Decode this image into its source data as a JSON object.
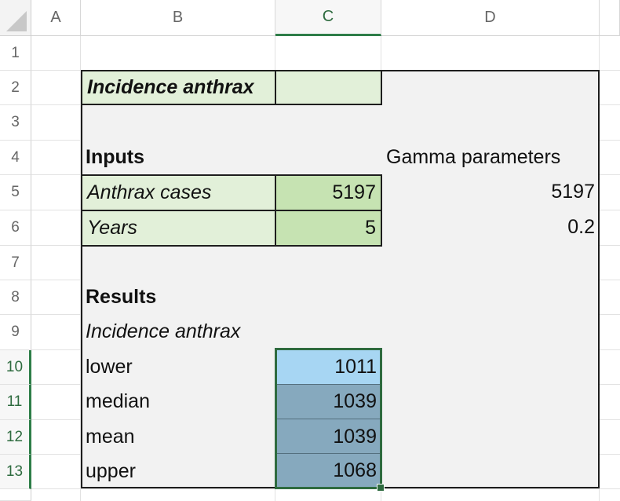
{
  "columns": [
    "A",
    "B",
    "C",
    "D"
  ],
  "rows": [
    "1",
    "2",
    "3",
    "4",
    "5",
    "6",
    "7",
    "8",
    "9",
    "10",
    "11",
    "12",
    "13"
  ],
  "selected_column": "C",
  "sheet": {
    "b2": "Incidence anthrax",
    "b4": "Inputs",
    "d4": "Gamma parameters",
    "b5": "Anthrax cases",
    "c5": "5197",
    "d5": "5197",
    "b6": "Years",
    "c6": "5",
    "d6": "0.2",
    "b8": "Results",
    "b9": "Incidence anthrax",
    "b10": "lower",
    "c10": "1011",
    "b11": "median",
    "c11": "1039",
    "b12": "mean",
    "c12": "1039",
    "b13": "upper",
    "c13": "1068"
  },
  "colors": {
    "input_label_fill": "#e2f0d9",
    "input_value_fill": "#c6e3b2",
    "active_cell_fill": "#a7d6f3",
    "selected_range_fill": "#86a9be",
    "selection_border": "#2e6b3f"
  }
}
